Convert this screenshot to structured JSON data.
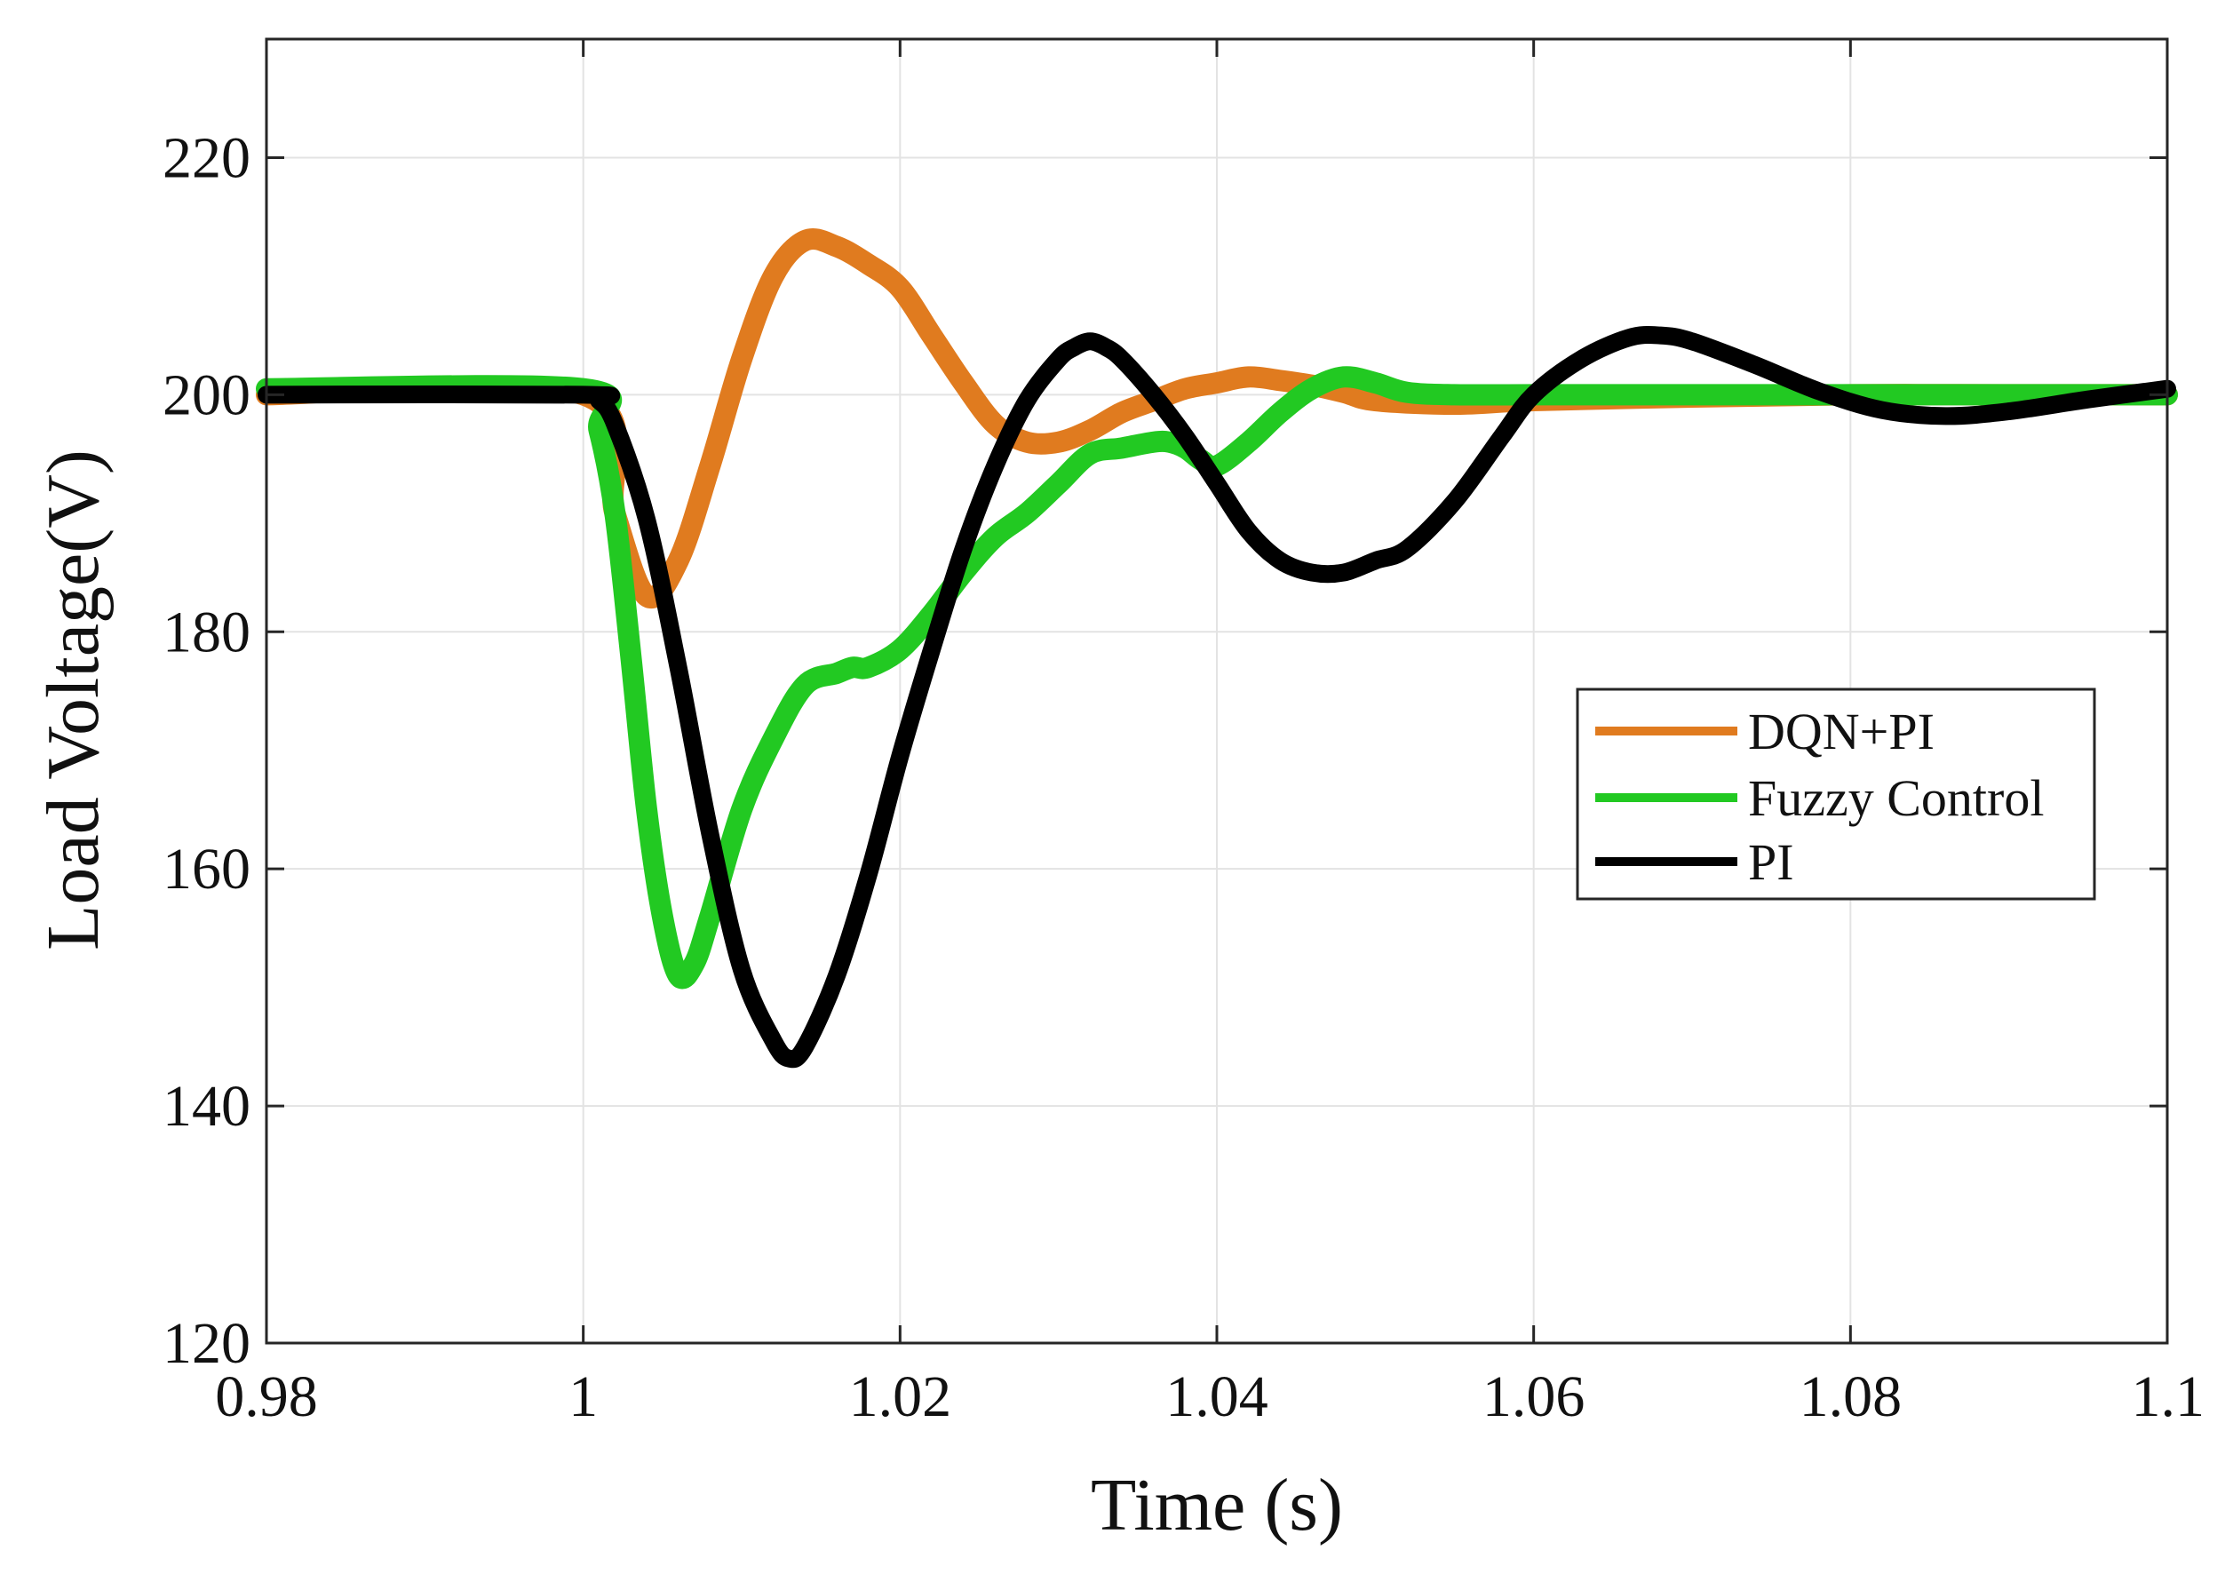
{
  "chart_data": {
    "type": "line",
    "title": "",
    "xlabel": "Time (s)",
    "ylabel": "Load Voltage(V)",
    "xlim": [
      0.98,
      1.1
    ],
    "ylim": [
      120,
      230
    ],
    "xticks": [
      0.98,
      1.0,
      1.02,
      1.04,
      1.06,
      1.08,
      1.1
    ],
    "xtick_labels": [
      "0.98",
      "1",
      "1.02",
      "1.04",
      "1.06",
      "1.08",
      "1.1"
    ],
    "yticks": [
      120,
      140,
      160,
      180,
      200,
      220
    ],
    "ytick_labels": [
      "120",
      "140",
      "160",
      "180",
      "200",
      "220"
    ],
    "grid": true,
    "legend_position": "center-right",
    "series": [
      {
        "name": "DQN+PI",
        "color": "#E07B1F",
        "x": [
          0.98,
          1.0,
          1.002,
          1.004,
          1.006,
          1.008,
          1.01,
          1.012,
          1.014,
          1.016,
          1.018,
          1.02,
          1.022,
          1.024,
          1.026,
          1.028,
          1.03,
          1.032,
          1.034,
          1.036,
          1.038,
          1.04,
          1.042,
          1.044,
          1.046,
          1.048,
          1.05,
          1.055,
          1.06,
          1.07,
          1.08,
          1.09,
          1.1
        ],
        "y": [
          200,
          200,
          190,
          183,
          186,
          194,
          203,
          210,
          213,
          212.5,
          211,
          209,
          205,
          201,
          197.5,
          196,
          196,
          197,
          198.5,
          199.5,
          200.5,
          201,
          201.5,
          201.2,
          200.8,
          200.2,
          199.5,
          199.2,
          199.5,
          199.8,
          200,
          200,
          200
        ]
      },
      {
        "name": "Fuzzy Control",
        "color": "#22C922",
        "x": [
          0.98,
          1.0,
          1.001,
          1.002,
          1.003,
          1.004,
          1.005,
          1.006,
          1.007,
          1.008,
          1.01,
          1.012,
          1.014,
          1.016,
          1.017,
          1.018,
          1.02,
          1.022,
          1.024,
          1.026,
          1.028,
          1.03,
          1.032,
          1.034,
          1.036,
          1.037,
          1.038,
          1.039,
          1.04,
          1.042,
          1.044,
          1.046,
          1.048,
          1.05,
          1.052,
          1.055,
          1.06,
          1.07,
          1.08,
          1.09,
          1.1
        ],
        "y": [
          200.5,
          200.5,
          197,
          190,
          178,
          165,
          156,
          151,
          152,
          156,
          165,
          171,
          175.5,
          176.5,
          177,
          177,
          178.5,
          181.5,
          185,
          188,
          190,
          192.5,
          195,
          195.5,
          196,
          196,
          195.5,
          194.5,
          194,
          196,
          198.5,
          200.5,
          201.5,
          201,
          200.2,
          200,
          200,
          200,
          200,
          200,
          200
        ]
      },
      {
        "name": "PI",
        "color": "#000000",
        "x": [
          0.98,
          1.0,
          1.001,
          1.002,
          1.004,
          1.006,
          1.008,
          1.01,
          1.012,
          1.013,
          1.014,
          1.016,
          1.018,
          1.02,
          1.022,
          1.024,
          1.026,
          1.028,
          1.03,
          1.031,
          1.032,
          1.033,
          1.034,
          1.036,
          1.038,
          1.04,
          1.042,
          1.044,
          1.046,
          1.048,
          1.05,
          1.052,
          1.055,
          1.058,
          1.06,
          1.063,
          1.066,
          1.068,
          1.07,
          1.074,
          1.078,
          1.082,
          1.086,
          1.09,
          1.095,
          1.1
        ],
        "y": [
          200,
          200,
          199.5,
          197.5,
          189.5,
          177,
          163,
          151.5,
          145.5,
          144,
          145,
          151,
          159.5,
          169.5,
          178.5,
          187,
          194,
          199.5,
          203,
          204,
          204.5,
          204,
          203,
          200,
          196.5,
          192.5,
          188.5,
          186,
          185,
          185,
          186,
          187,
          191,
          196.5,
          200,
          203,
          204.8,
          205,
          204.5,
          202.5,
          200.3,
          198.7,
          198.2,
          198.6,
          199.6,
          200.5
        ]
      }
    ]
  }
}
